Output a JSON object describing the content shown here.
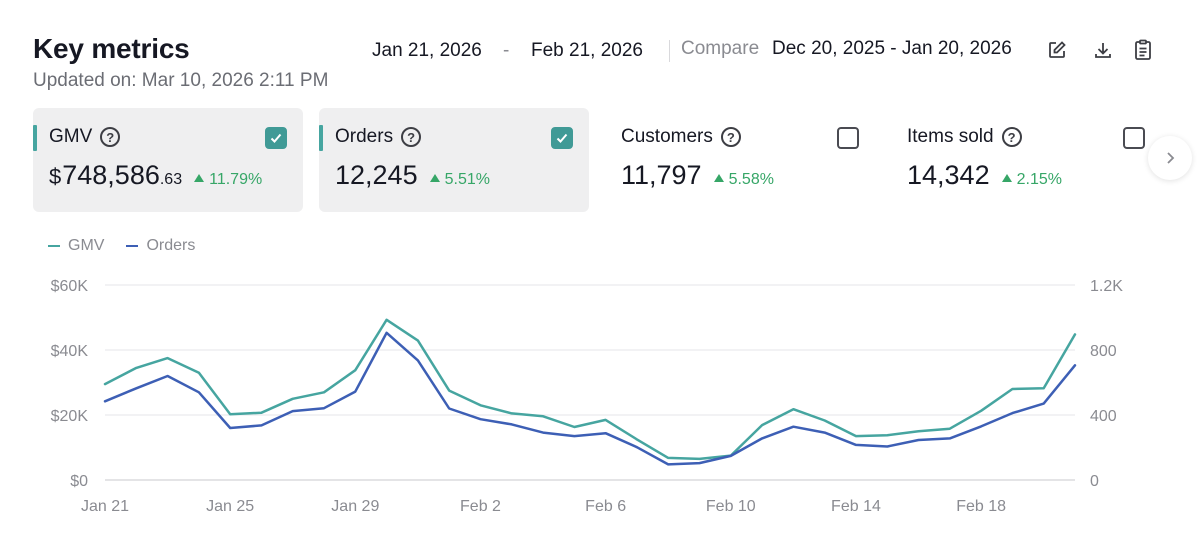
{
  "header": {
    "title": "Key metrics",
    "updated": "Updated on: Mar 10, 2026 2:11 PM"
  },
  "date_range": {
    "start": "Jan 21, 2026",
    "separator": "-",
    "end": "Feb 21, 2026",
    "compare_label": "Compare",
    "compare_range": "Dec 20, 2025 - Jan 20, 2026"
  },
  "toolbar": {
    "icons": [
      "edit-icon",
      "download-icon",
      "report-icon"
    ]
  },
  "cards": {
    "gmv": {
      "label": "GMV",
      "currency": "$",
      "value_main": "748,586",
      "value_cents": ".63",
      "change": "11.79%",
      "checked": true
    },
    "orders": {
      "label": "Orders",
      "value": "12,245",
      "change": "5.51%",
      "checked": true
    },
    "customers": {
      "label": "Customers",
      "value": "11,797",
      "change": "5.58%",
      "checked": false
    },
    "items": {
      "label": "Items sold",
      "value": "14,342",
      "change": "2.15%",
      "checked": false
    }
  },
  "colors": {
    "gmv_line": "#46a5a0",
    "orders_line": "#3d5fb5",
    "positive": "#36a667",
    "checkbox_checked": "#409a96"
  },
  "chart_data": {
    "type": "line",
    "x": [
      "Jan 21",
      "Jan 22",
      "Jan 23",
      "Jan 24",
      "Jan 25",
      "Jan 26",
      "Jan 27",
      "Jan 28",
      "Jan 29",
      "Jan 30",
      "Jan 31",
      "Feb 1",
      "Feb 2",
      "Feb 3",
      "Feb 4",
      "Feb 5",
      "Feb 6",
      "Feb 7",
      "Feb 8",
      "Feb 9",
      "Feb 10",
      "Feb 11",
      "Feb 12",
      "Feb 13",
      "Feb 14",
      "Feb 15",
      "Feb 16",
      "Feb 17",
      "Feb 18",
      "Feb 19",
      "Feb 20",
      "Feb 21"
    ],
    "x_ticks": [
      "Jan 21",
      "Jan 25",
      "Jan 29",
      "Feb 2",
      "Feb 6",
      "Feb 10",
      "Feb 14",
      "Feb 18"
    ],
    "y_left_ticks": [
      "$0",
      "$20K",
      "$40K",
      "$60K"
    ],
    "y_right_ticks": [
      "0",
      "400",
      "800",
      "1.2K"
    ],
    "ylim_left": [
      0,
      60000
    ],
    "ylim_right": [
      0,
      1200
    ],
    "grid": true,
    "legend_position": "top-left",
    "series": [
      {
        "name": "GMV",
        "axis": "left",
        "values": [
          29500,
          34500,
          37500,
          33000,
          20200,
          20700,
          25000,
          27000,
          33800,
          49300,
          42900,
          27500,
          23000,
          20500,
          19600,
          16300,
          18500,
          12500,
          6800,
          6500,
          7500,
          16900,
          21800,
          18300,
          13500,
          13800,
          15000,
          15800,
          21300,
          28000,
          28200,
          44800
        ]
      },
      {
        "name": "Orders",
        "axis": "left",
        "values": [
          24200,
          28200,
          32000,
          27000,
          16000,
          16800,
          21200,
          22100,
          27200,
          45300,
          36800,
          22000,
          18700,
          17100,
          14600,
          13500,
          14400,
          10100,
          4800,
          5200,
          7400,
          12800,
          16400,
          14600,
          10800,
          10300,
          12300,
          12800,
          16500,
          20600,
          23500,
          35300
        ]
      }
    ]
  }
}
